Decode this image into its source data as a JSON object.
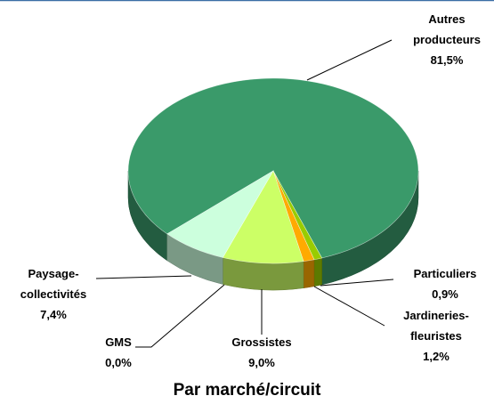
{
  "chart_data": {
    "type": "pie",
    "title": "Par marché/circuit",
    "categories": [
      "Autres producteurs",
      "Particuliers",
      "Jardineries-fleuristes",
      "Grossistes",
      "GMS",
      "Paysage-collectivités"
    ],
    "values": [
      81.5,
      0.9,
      1.2,
      9.0,
      0,
      7.4
    ],
    "value_labels": [
      "81,5%",
      "0,9%",
      "1,2%",
      "9,0%",
      "0,0%",
      "7,4%"
    ],
    "colors": [
      "#3a9a6a",
      "#99cc00",
      "#ffaa00",
      "#ccff66",
      "#66aa66",
      "#ccffdd"
    ]
  }
}
